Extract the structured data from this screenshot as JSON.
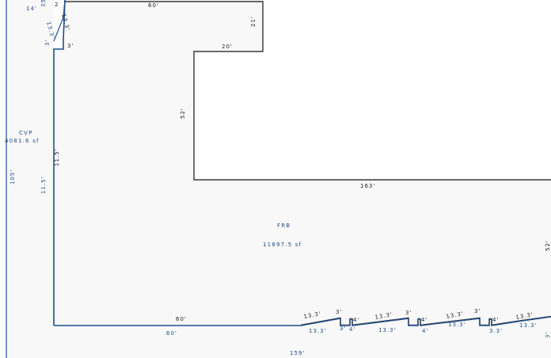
{
  "colors": {
    "background": "#ffffff",
    "area_fill": "#f8f8f8",
    "area_outline": "#1f4e8c",
    "structure_line": "#111111",
    "label_blue": "#1f4e8c",
    "label_black": "#222222"
  },
  "areas": [
    {
      "name": "CVP",
      "size": "4081.6 sf"
    },
    {
      "name": "FRB",
      "size": "11897.5 sf"
    }
  ],
  "dimensions": {
    "top_left_14": "14'",
    "top_left_small_a": "35",
    "top_left_small_b": "2",
    "diag_133_a": "13.3'",
    "diag_133_b": "13.3'",
    "small_3_a": "3'",
    "small_3_b": "3'",
    "top_60": "60'",
    "top_right_21": "21'",
    "notch_20": "20'",
    "notch_52": "52'",
    "long_163": "163'",
    "left_105": "105'",
    "left_115_a": "11.5'",
    "left_115_b": "11.5'",
    "right_52": "52'",
    "bottom_60_a": "60'",
    "bottom_60_b": "60'",
    "bottom_159": "159'",
    "saw": [
      "13.3'",
      "13.3'",
      "3'",
      "3'",
      "4'",
      "4'",
      "13.3'",
      "13.3'",
      "3'",
      "4'",
      "4'",
      "13.3'",
      "13.3'",
      "3'",
      "4'",
      "3.3'",
      "13.3'",
      "13.3'",
      "3'"
    ]
  }
}
